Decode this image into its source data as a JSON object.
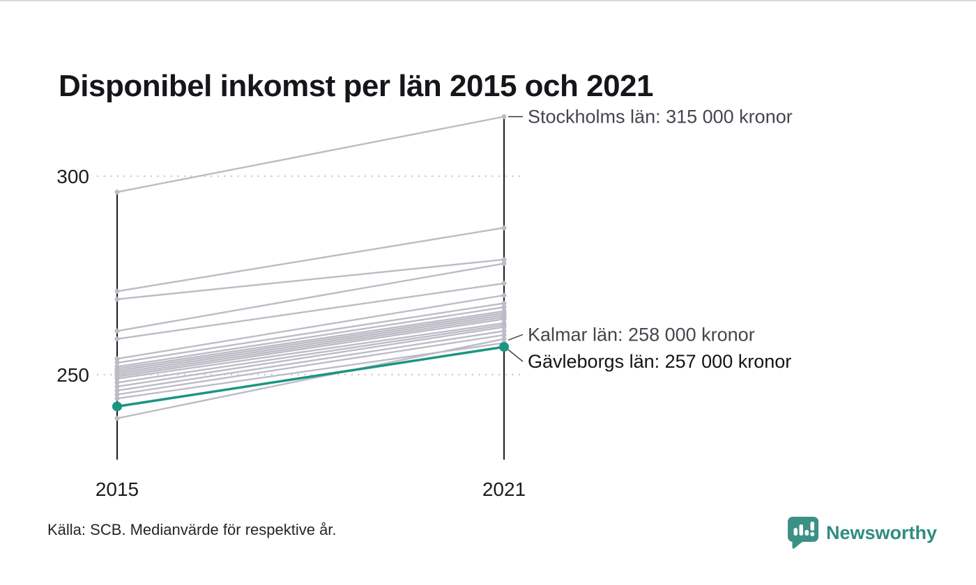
{
  "header": {
    "title": "Disponibel inkomst per län 2015 och 2021"
  },
  "footer": {
    "source": "Källa: SCB. Medianvärde för respektive år.",
    "brand": "Newsworthy"
  },
  "colors": {
    "highlight": "#1a9583",
    "gray_line": "#bdbbc6",
    "axis": "#1c1c1f",
    "grid": "#c9c8cf",
    "annotation_gray": "#45454e",
    "annotation_dark": "#141414",
    "logo_teal": "#3b9186",
    "brand_text_teal": "#2f8c80"
  },
  "chart_data": {
    "type": "line",
    "subtype": "slope-chart",
    "title": "Disponibel inkomst per län 2015 och 2021",
    "xlabel": "",
    "ylabel": "",
    "x_labels": [
      "2015",
      "2021"
    ],
    "yticks": [
      300,
      250
    ],
    "ylim": [
      228,
      320
    ],
    "legend": "none",
    "grid": "dotted horizontal lines at yticks",
    "values_unit": "tusen kronor",
    "series": [
      {
        "name": "Stockholms län",
        "values": [
          296,
          315
        ],
        "highlight": false
      },
      {
        "values": [
          271,
          287
        ],
        "highlight": false
      },
      {
        "values": [
          269,
          279
        ],
        "highlight": false
      },
      {
        "values": [
          261,
          278
        ],
        "highlight": false
      },
      {
        "values": [
          259,
          273
        ],
        "highlight": false
      },
      {
        "values": [
          254,
          270
        ],
        "highlight": false
      },
      {
        "values": [
          253,
          268
        ],
        "highlight": false
      },
      {
        "values": [
          252,
          267
        ],
        "highlight": false
      },
      {
        "values": [
          251.5,
          266
        ],
        "highlight": false
      },
      {
        "values": [
          251,
          265.5
        ],
        "highlight": false
      },
      {
        "values": [
          250.5,
          265
        ],
        "highlight": false
      },
      {
        "values": [
          250,
          264.5
        ],
        "highlight": false
      },
      {
        "values": [
          249.5,
          264
        ],
        "highlight": false
      },
      {
        "values": [
          249,
          263
        ],
        "highlight": false
      },
      {
        "values": [
          248,
          262.5
        ],
        "highlight": false
      },
      {
        "values": [
          247,
          262
        ],
        "highlight": false
      },
      {
        "values": [
          246,
          261
        ],
        "highlight": false
      },
      {
        "values": [
          245,
          260
        ],
        "highlight": false
      },
      {
        "values": [
          239,
          259
        ],
        "highlight": false
      },
      {
        "name": "Kalmar län",
        "values": [
          244,
          258
        ],
        "highlight": false
      },
      {
        "name": "Gävleborgs län",
        "values": [
          242,
          257
        ],
        "highlight": true
      }
    ],
    "annotations": [
      {
        "text": "Stockholms län: 315 000 kronor",
        "value": 315,
        "dy": 0,
        "tone": "gray"
      },
      {
        "text": "Kalmar län: 258 000 kronor",
        "value": 258,
        "dy": -12,
        "tone": "gray"
      },
      {
        "text": "Gävleborgs län: 257 000 kronor",
        "value": 257,
        "dy": 21,
        "tone": "dark"
      }
    ]
  }
}
